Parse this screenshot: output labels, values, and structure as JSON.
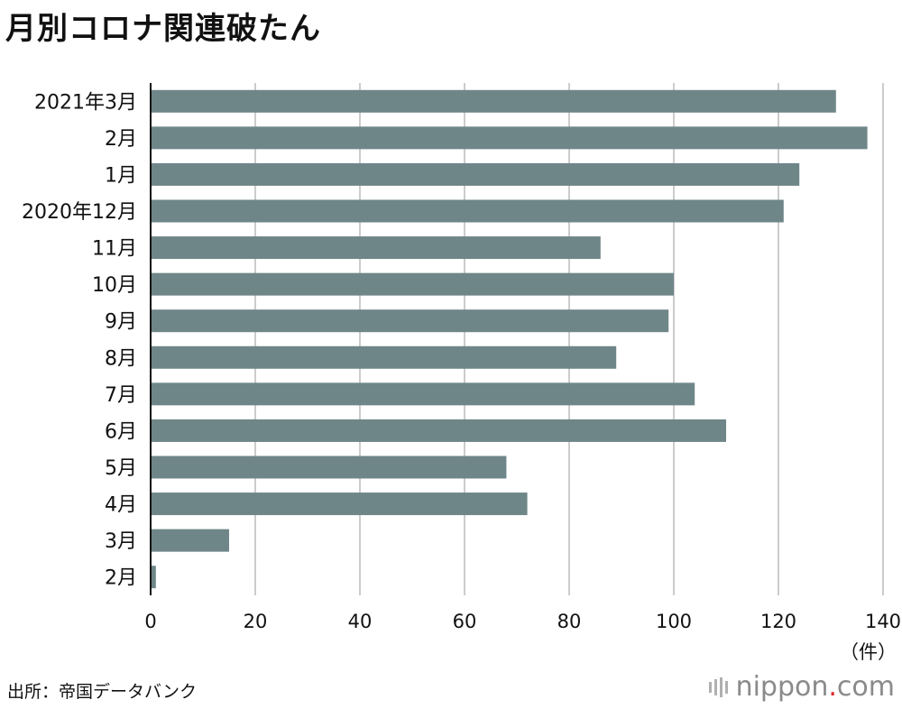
{
  "title": "月別コロナ関連破たん",
  "source": "出所：帝国データバンク",
  "logo": {
    "pre": "nippon",
    "dot": ".",
    "post": "com"
  },
  "colors": {
    "bar": "#6f8689",
    "grid": "#cccccc",
    "axis": "#111111",
    "logo_dot": "#e0262b"
  },
  "chart_data": {
    "type": "bar",
    "orientation": "horizontal",
    "categories": [
      "2021年3月",
      "2月",
      "1月",
      "2020年12月",
      "11月",
      "10月",
      "9月",
      "8月",
      "7月",
      "6月",
      "5月",
      "4月",
      "3月",
      "2月"
    ],
    "values": [
      131,
      137,
      124,
      121,
      86,
      100,
      99,
      89,
      104,
      110,
      68,
      72,
      15,
      1
    ],
    "xlim": [
      0,
      140
    ],
    "xticks": [
      0,
      20,
      40,
      60,
      80,
      100,
      120,
      140
    ],
    "xunit": "（件）",
    "grid": true
  }
}
